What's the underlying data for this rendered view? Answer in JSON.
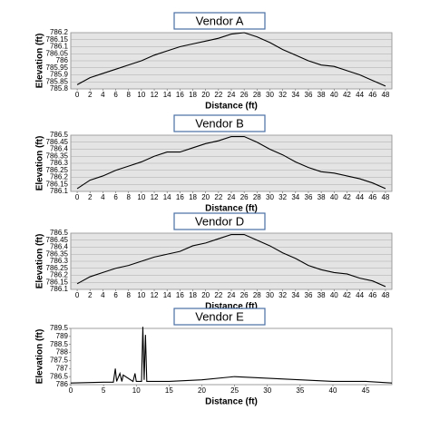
{
  "chart_data": [
    {
      "type": "line",
      "title": "Vendor A",
      "x_label": "Distance (ft)",
      "y_label": "Elevation (ft)",
      "background": "#e4e4e4",
      "grid": true,
      "color": "#000000",
      "x": [
        0,
        2,
        4,
        6,
        8,
        10,
        12,
        14,
        16,
        18,
        20,
        22,
        24,
        26,
        28,
        30,
        32,
        34,
        36,
        38,
        40,
        42,
        44,
        46,
        48
      ],
      "values": [
        785.83,
        785.88,
        785.91,
        785.94,
        785.97,
        786.0,
        786.04,
        786.07,
        786.1,
        786.12,
        786.14,
        786.16,
        786.19,
        786.2,
        786.17,
        786.13,
        786.08,
        786.04,
        786.0,
        785.97,
        785.96,
        785.93,
        785.9,
        785.86,
        785.82
      ],
      "xlim": [
        -1,
        49
      ],
      "xticks": [
        0,
        2,
        4,
        6,
        8,
        10,
        12,
        14,
        16,
        18,
        20,
        22,
        24,
        26,
        28,
        30,
        32,
        34,
        36,
        38,
        40,
        42,
        44,
        46,
        48
      ],
      "ylim": [
        785.8,
        786.2
      ],
      "yticks": [
        785.8,
        785.85,
        785.9,
        785.95,
        786,
        786.05,
        786.1,
        786.15,
        786.2
      ]
    },
    {
      "type": "line",
      "title": "Vendor B",
      "x_label": "Distance (ft)",
      "y_label": "Elevation (ft)",
      "background": "#e4e4e4",
      "grid": true,
      "color": "#000000",
      "x": [
        0,
        2,
        4,
        6,
        8,
        10,
        12,
        14,
        16,
        18,
        20,
        22,
        24,
        26,
        28,
        30,
        32,
        34,
        36,
        38,
        40,
        42,
        44,
        46,
        48
      ],
      "values": [
        786.12,
        786.18,
        786.21,
        786.25,
        786.28,
        786.31,
        786.35,
        786.38,
        786.38,
        786.41,
        786.44,
        786.46,
        786.49,
        786.49,
        786.45,
        786.4,
        786.36,
        786.31,
        786.27,
        786.24,
        786.23,
        786.21,
        786.19,
        786.16,
        786.12
      ],
      "xlim": [
        -1,
        49
      ],
      "xticks": [
        0,
        2,
        4,
        6,
        8,
        10,
        12,
        14,
        16,
        18,
        20,
        22,
        24,
        26,
        28,
        30,
        32,
        34,
        36,
        38,
        40,
        42,
        44,
        46,
        48
      ],
      "ylim": [
        786.1,
        786.5
      ],
      "yticks": [
        786.1,
        786.15,
        786.2,
        786.25,
        786.3,
        786.35,
        786.4,
        786.45,
        786.5
      ]
    },
    {
      "type": "line",
      "title": "Vendor D",
      "x_label": "Distance (ft)",
      "y_label": "Elevation (ft)",
      "background": "#e4e4e4",
      "grid": true,
      "color": "#000000",
      "x": [
        0,
        2,
        4,
        6,
        8,
        10,
        12,
        14,
        16,
        18,
        20,
        22,
        24,
        26,
        28,
        30,
        32,
        34,
        36,
        38,
        40,
        42,
        44,
        46,
        48
      ],
      "values": [
        786.14,
        786.19,
        786.22,
        786.25,
        786.27,
        786.3,
        786.33,
        786.35,
        786.37,
        786.41,
        786.43,
        786.46,
        786.49,
        786.49,
        786.45,
        786.41,
        786.36,
        786.32,
        786.27,
        786.24,
        786.22,
        786.21,
        786.18,
        786.16,
        786.12
      ],
      "xlim": [
        -1,
        49
      ],
      "xticks": [
        0,
        2,
        4,
        6,
        8,
        10,
        12,
        14,
        16,
        18,
        20,
        22,
        24,
        26,
        28,
        30,
        32,
        34,
        36,
        38,
        40,
        42,
        44,
        46,
        48
      ],
      "ylim": [
        786.1,
        786.5
      ],
      "yticks": [
        786.1,
        786.15,
        786.2,
        786.25,
        786.3,
        786.35,
        786.4,
        786.45,
        786.5
      ]
    },
    {
      "type": "line",
      "title": "Vendor E",
      "x_label": "Distance (ft)",
      "y_label": "Elevation (ft)",
      "background": "#ffffff",
      "grid": false,
      "color": "#000000",
      "x": [
        0,
        5,
        6.5,
        6.8,
        7,
        7.5,
        7.8,
        8,
        9.5,
        9.8,
        10,
        10.8,
        11,
        11.2,
        11.4,
        11.6,
        12,
        15,
        20,
        25,
        30,
        35,
        40,
        45,
        49
      ],
      "values": [
        786.1,
        786.15,
        786.15,
        787.0,
        786.2,
        786.7,
        786.2,
        786.6,
        786.2,
        786.7,
        786.2,
        786.2,
        789.6,
        786.3,
        789.1,
        786.2,
        786.2,
        786.2,
        786.3,
        786.5,
        786.4,
        786.3,
        786.2,
        786.2,
        786.1
      ],
      "xlim": [
        0,
        49
      ],
      "xticks": [
        0,
        5,
        10,
        15,
        20,
        25,
        30,
        35,
        40,
        45
      ],
      "ylim": [
        786,
        789.5
      ],
      "yticks": [
        786,
        786.5,
        787,
        787.5,
        788,
        788.5,
        789,
        789.5
      ]
    }
  ]
}
